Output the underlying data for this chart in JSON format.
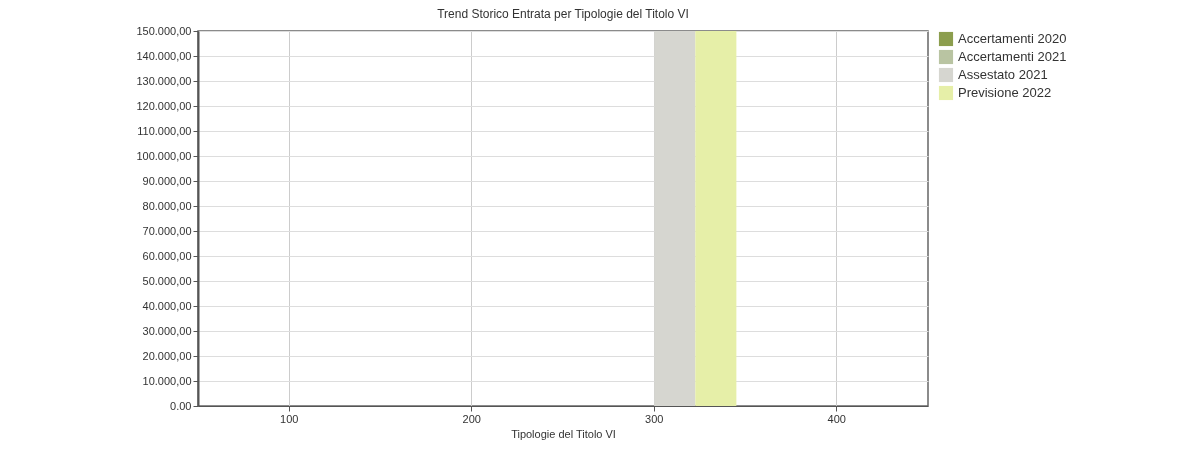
{
  "chart_data": {
    "type": "bar",
    "title": "Trend Storico Entrata per Tipologie del Titolo VI",
    "xlabel": "Tipologie del Titolo VI",
    "categories": [
      "100",
      "200",
      "300",
      "400"
    ],
    "series": [
      {
        "name": "Accertamenti 2020",
        "color": "#8c9e4e",
        "values": [
          0,
          0,
          0,
          0
        ]
      },
      {
        "name": "Accertamenti 2021",
        "color": "#b9c4a2",
        "values": [
          0,
          0,
          0,
          0
        ]
      },
      {
        "name": "Assestato 2021",
        "color": "#d6d6d0",
        "values": [
          0,
          0,
          150000,
          0
        ]
      },
      {
        "name": "Previsione 2022",
        "color": "#e6efa8",
        "values": [
          0,
          0,
          150000,
          0
        ]
      }
    ],
    "ylim": [
      0,
      150000
    ],
    "yticks": [
      {
        "value": 0,
        "label": "0.00"
      },
      {
        "value": 10000,
        "label": "10.000,00"
      },
      {
        "value": 20000,
        "label": "20.000,00"
      },
      {
        "value": 30000,
        "label": "30.000,00"
      },
      {
        "value": 40000,
        "label": "40.000,00"
      },
      {
        "value": 50000,
        "label": "50.000,00"
      },
      {
        "value": 60000,
        "label": "60.000,00"
      },
      {
        "value": 70000,
        "label": "70.000,00"
      },
      {
        "value": 80000,
        "label": "80.000,00"
      },
      {
        "value": 90000,
        "label": "90.000,00"
      },
      {
        "value": 100000,
        "label": "100.000,00"
      },
      {
        "value": 110000,
        "label": "110.000,00"
      },
      {
        "value": 120000,
        "label": "120.000,00"
      },
      {
        "value": 130000,
        "label": "130.000,00"
      },
      {
        "value": 140000,
        "label": "140.000,00"
      },
      {
        "value": 150000,
        "label": "150.000,00"
      }
    ],
    "grid": true,
    "legend": "top right"
  }
}
